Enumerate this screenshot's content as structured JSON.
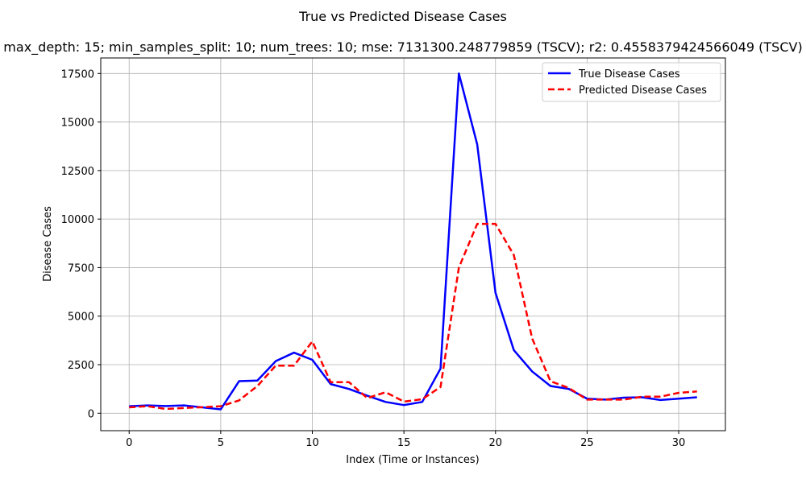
{
  "chart_data": {
    "type": "line",
    "title": "True vs Predicted Disease Cases",
    "subtitle": "max_depth: 15; min_samples_split: 10; num_trees: 10; mse: 7131300.248779859 (TSCV); r2: 0.4558379424566049 (TSCV)",
    "xlabel": "Index (Time or Instances)",
    "ylabel": "Disease Cases",
    "xlim": [
      -1.55,
      32.55
    ],
    "ylim": [
      -900,
      18300
    ],
    "xticks": [
      0,
      5,
      10,
      15,
      20,
      25,
      30
    ],
    "yticks": [
      0,
      2500,
      5000,
      7500,
      10000,
      12500,
      15000,
      17500
    ],
    "grid": true,
    "legend_position": "top-right",
    "x": [
      0,
      1,
      2,
      3,
      4,
      5,
      6,
      7,
      8,
      9,
      10,
      11,
      12,
      13,
      14,
      15,
      16,
      17,
      18,
      19,
      20,
      21,
      22,
      23,
      24,
      25,
      26,
      27,
      28,
      29,
      30,
      31
    ],
    "series": [
      {
        "name": "True Disease Cases",
        "color": "#0000ff",
        "dash": "solid",
        "values": [
          360,
          400,
          370,
          400,
          300,
          200,
          1650,
          1680,
          2680,
          3120,
          2750,
          1500,
          1250,
          900,
          580,
          420,
          580,
          2300,
          17500,
          13850,
          6200,
          3250,
          2150,
          1400,
          1250,
          750,
          700,
          800,
          820,
          680,
          750,
          820
        ]
      },
      {
        "name": "Predicted Disease Cases",
        "color": "#ff0000",
        "dash": "dashed",
        "values": [
          300,
          360,
          220,
          270,
          310,
          360,
          660,
          1400,
          2450,
          2450,
          3700,
          1600,
          1600,
          780,
          1080,
          600,
          720,
          1350,
          7500,
          9750,
          9750,
          8150,
          3850,
          1650,
          1300,
          700,
          700,
          700,
          850,
          850,
          1050,
          1120
        ]
      }
    ]
  }
}
